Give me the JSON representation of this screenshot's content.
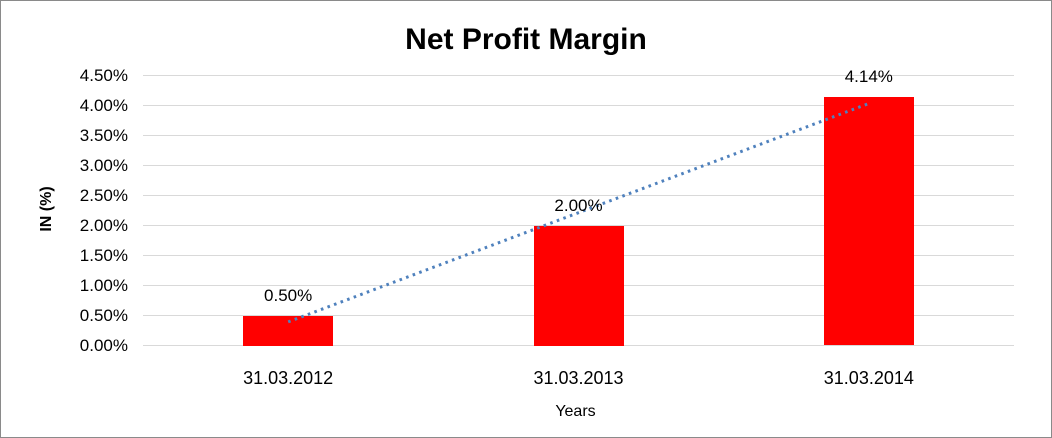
{
  "chart_data": {
    "type": "bar",
    "title": "Net Profit Margin",
    "xlabel": "Years",
    "ylabel": "IN (%)",
    "categories": [
      "31.03.2012",
      "31.03.2013",
      "31.03.2014"
    ],
    "values": [
      0.5,
      2.0,
      4.14
    ],
    "data_labels": [
      "0.50%",
      "2.00%",
      "4.14%"
    ],
    "ylim": [
      0,
      4.5
    ],
    "ytick_step": 0.5,
    "ytick_labels": [
      "0.00%",
      "0.50%",
      "1.00%",
      "1.50%",
      "2.00%",
      "2.50%",
      "3.00%",
      "3.50%",
      "4.00%",
      "4.50%"
    ],
    "grid": true,
    "legend": "none",
    "bar_color": "#FF0000",
    "gridline_color": "#D9D9D9",
    "text_color": "#000000",
    "trendline": {
      "type": "linear",
      "style": "dotted",
      "color": "#4F81BD"
    }
  }
}
